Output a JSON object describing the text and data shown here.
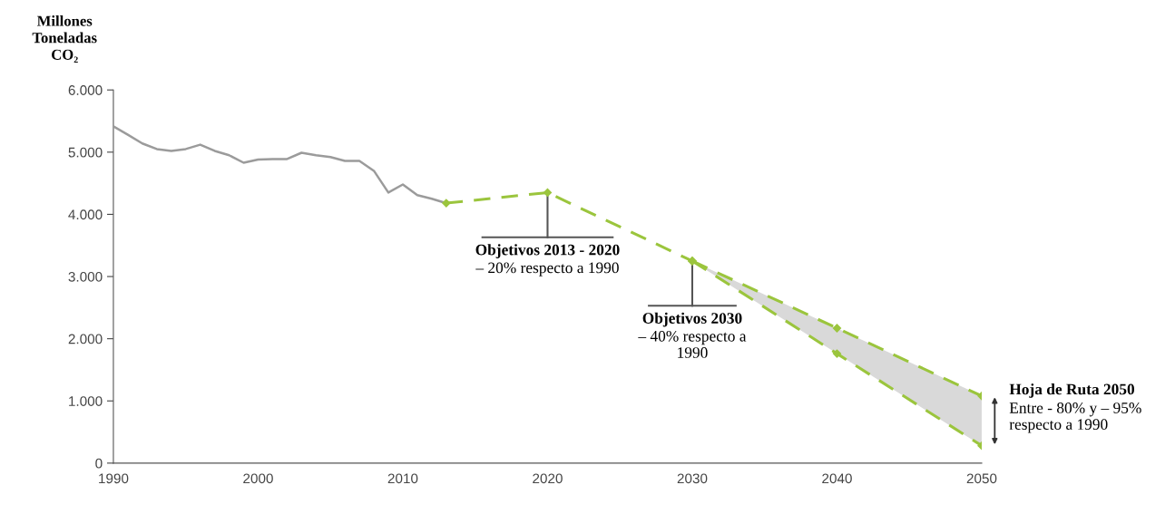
{
  "chart_data": {
    "type": "line",
    "ylabel": "Millones\nToneladas\nCO₂",
    "xlim": [
      1990,
      2050
    ],
    "xticks": [
      1990,
      2000,
      2010,
      2020,
      2030,
      2040,
      2050
    ],
    "ylim": [
      0,
      6000
    ],
    "yticks": [
      {
        "value": 0,
        "label": "0"
      },
      {
        "value": 1000,
        "label": "1.000"
      },
      {
        "value": 2000,
        "label": "2.000"
      },
      {
        "value": 3000,
        "label": "3.000"
      },
      {
        "value": 4000,
        "label": "4.000"
      },
      {
        "value": 5000,
        "label": "5.000"
      },
      {
        "value": 6000,
        "label": "6.000"
      }
    ],
    "grid": false,
    "legend": false,
    "series": [
      {
        "color": "#9b9b9b",
        "marker": "none",
        "line_style": "solid",
        "x": [
          1990,
          1991,
          1992,
          1993,
          1994,
          1995,
          1996,
          1997,
          1998,
          1999,
          2000,
          2001,
          2002,
          2003,
          2004,
          2005,
          2006,
          2007,
          2008,
          2009,
          2010,
          2011,
          2012,
          2013
        ],
        "values": [
          5415,
          5280,
          5140,
          5050,
          5020,
          5050,
          5120,
          5020,
          4950,
          4830,
          4880,
          4890,
          4890,
          4990,
          4950,
          4920,
          4860,
          4860,
          4700,
          4350,
          4480,
          4310,
          4250,
          4180
        ]
      },
      {
        "color": "#9bc53d",
        "marker": "diamond",
        "line_style": "dashed",
        "x": [
          2013,
          2020,
          2030
        ],
        "values": [
          4180,
          4350,
          3250
        ]
      },
      {
        "color": "#9bc53d",
        "marker": "diamond",
        "line_style": "dashed",
        "x": [
          2030,
          2040,
          2050
        ],
        "values": [
          3250,
          2170,
          1080
        ]
      },
      {
        "color": "#9bc53d",
        "marker": "diamond",
        "line_style": "dashed",
        "x": [
          2030,
          2040,
          2050
        ],
        "values": [
          3250,
          1760,
          280
        ],
        "lower": [
          3250,
          1760,
          280
        ],
        "upper": [
          3250,
          2170,
          1080
        ]
      }
    ],
    "annotations": [
      {
        "text": "Objetivos 2013 - 2020\n– 20% respecto a 1990",
        "x": 2020,
        "y": 4350
      },
      {
        "text": "Objetivos 2030\n– 40% respecto a\n1990",
        "x": 2030,
        "y": 3250
      },
      {
        "text": "Hoja de Ruta 2050\nEntre - 80% y – 95%\nrespecto a 1990",
        "x": 2050,
        "y": 680
      }
    ]
  }
}
